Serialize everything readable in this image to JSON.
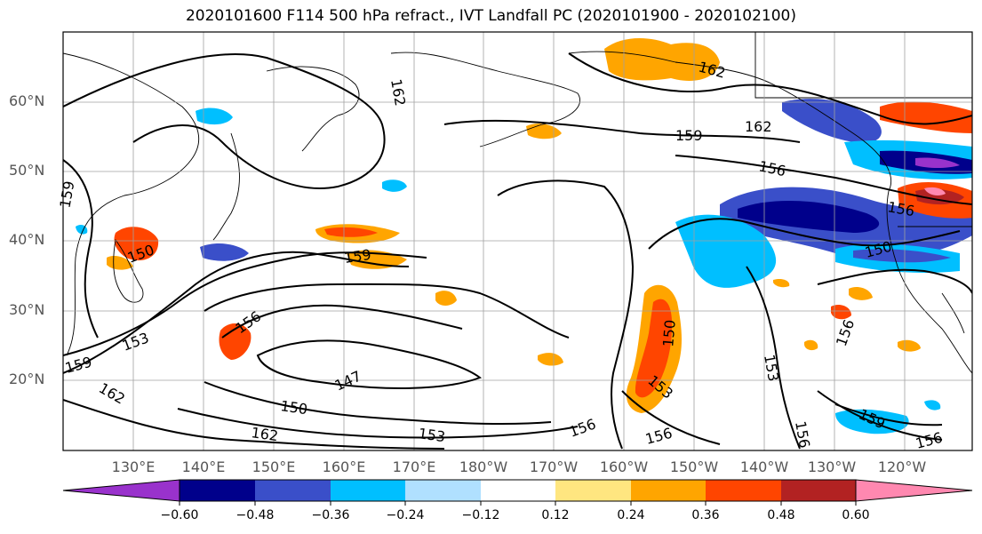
{
  "title": "2020101600 F114 500 hPa refract., IVT Landfall PC (2020101900 - 2020102100)",
  "map": {
    "lat_labels": [
      "60°N",
      "50°N",
      "40°N",
      "30°N",
      "20°N"
    ],
    "lon_labels": [
      "130°E",
      "140°E",
      "150°E",
      "160°E",
      "170°E",
      "180°W",
      "170°W",
      "160°W",
      "150°W",
      "140°W",
      "130°W",
      "120°W"
    ],
    "contour_labels": [
      "162",
      "159",
      "156",
      "153",
      "150",
      "147"
    ],
    "contour_color": "#000000"
  },
  "colorbar": {
    "colors": [
      "#9932cc",
      "#00008b",
      "#3a4fc9",
      "#00bfff",
      "#b0e0ff",
      "#ffffff",
      "#ffe680",
      "#ffa500",
      "#ff4500",
      "#b22222",
      "#ff88b0"
    ],
    "tick_labels": [
      "−0.60",
      "−0.48",
      "−0.36",
      "−0.24",
      "−0.12",
      "0.12",
      "0.24",
      "0.36",
      "0.48",
      "0.60"
    ]
  }
}
